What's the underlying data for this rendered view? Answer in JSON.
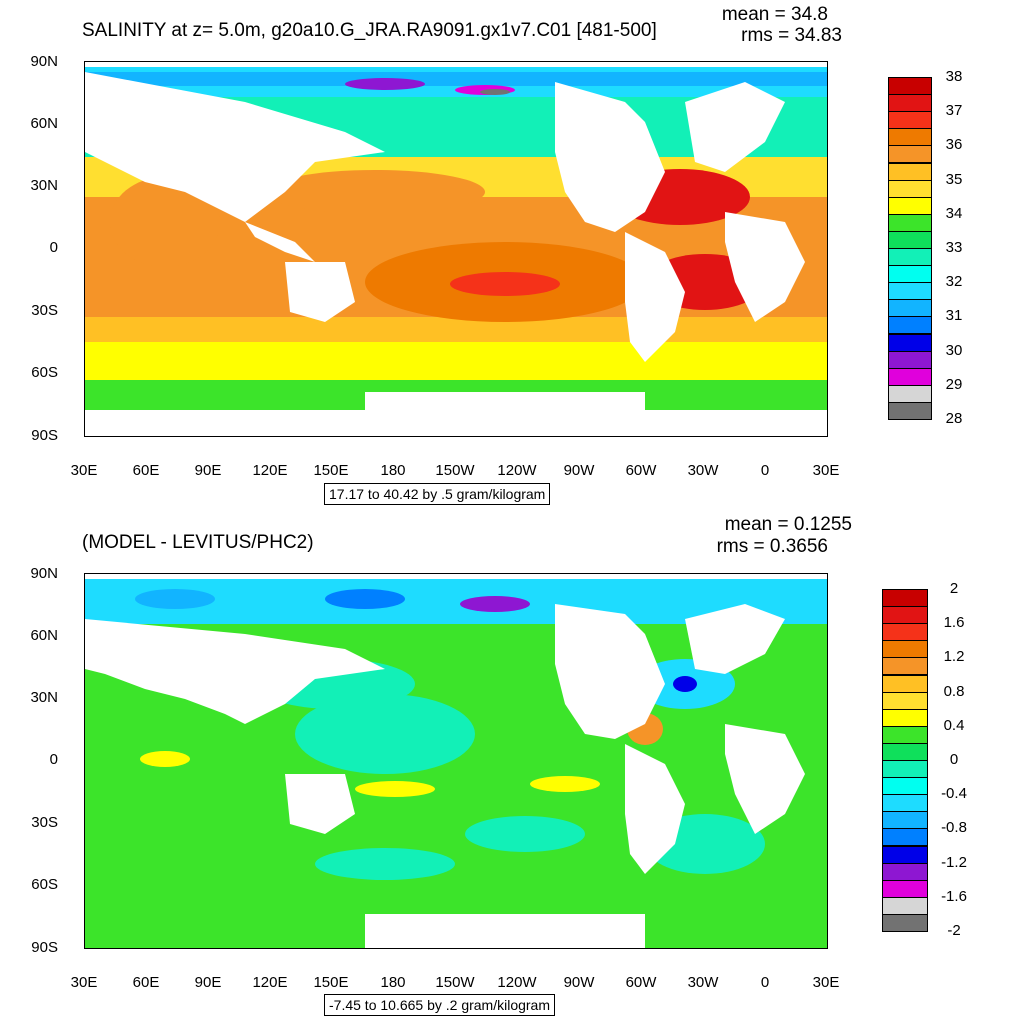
{
  "top": {
    "title": "SALINITY at z=   5.0m, g20a10.G_JRA.RA9091.gx1v7.C01 [481-500]",
    "mean": "mean = 34.8",
    "rms": "rms = 34.83",
    "range": "17.17 to 40.42 by .5 gram/kilogram",
    "lat_ticks": [
      "90N",
      "60N",
      "30N",
      "0",
      "30S",
      "60S",
      "90S"
    ],
    "lon_ticks": [
      "30E",
      "60E",
      "90E",
      "120E",
      "150E",
      "180",
      "150W",
      "120W",
      "90W",
      "60W",
      "30W",
      "0",
      "30E"
    ],
    "colorbar_labels": [
      "38",
      "37",
      "36",
      "35",
      "34",
      "33",
      "32",
      "31",
      "30",
      "29",
      "28"
    ],
    "colorbar_colors": [
      "#c80000",
      "#e11414",
      "#f53219",
      "#ee7a00",
      "#f59428",
      "#ffc024",
      "#ffdf30",
      "#ffff00",
      "#3ce42a",
      "#0fe05b",
      "#12f0b7",
      "#00fff0",
      "#1edcff",
      "#12b4ff",
      "#0080ff",
      "#0000e8",
      "#8e17d2",
      "#e000dc",
      "#d6d6d6",
      "#727272"
    ]
  },
  "bottom": {
    "title": "(MODEL - LEVITUS/PHC2)",
    "mean": "mean = 0.1255",
    "rms": "rms = 0.3656",
    "range": "-7.45 to 10.665 by .2 gram/kilogram",
    "lat_ticks": [
      "90N",
      "60N",
      "30N",
      "0",
      "30S",
      "60S",
      "90S"
    ],
    "lon_ticks": [
      "30E",
      "60E",
      "90E",
      "120E",
      "150E",
      "180",
      "150W",
      "120W",
      "90W",
      "60W",
      "30W",
      "0",
      "30E"
    ],
    "colorbar_labels": [
      "2",
      "1.6",
      "1.2",
      "0.8",
      "0.4",
      "0",
      "-0.4",
      "-0.8",
      "-1.2",
      "-1.6",
      "-2"
    ],
    "colorbar_colors": [
      "#c80000",
      "#e11414",
      "#f53219",
      "#ee7a00",
      "#f59428",
      "#ffc024",
      "#ffdf30",
      "#ffff00",
      "#3ce42a",
      "#0fe05b",
      "#12f0b7",
      "#00fff0",
      "#1edcff",
      "#12b4ff",
      "#0080ff",
      "#0000e8",
      "#8e17d2",
      "#e000dc",
      "#d6d6d6",
      "#727272"
    ]
  }
}
